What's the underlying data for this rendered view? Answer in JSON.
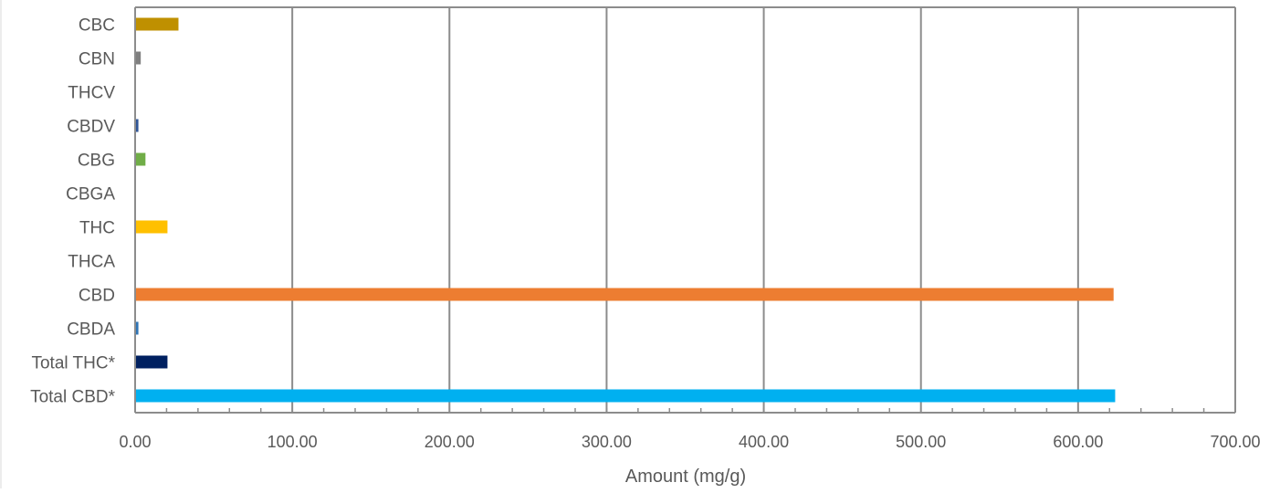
{
  "chart_data": {
    "type": "bar",
    "orientation": "horizontal",
    "categories": [
      "CBC",
      "CBN",
      "THCV",
      "CBDV",
      "CBG",
      "CBGA",
      "THC",
      "THCA",
      "CBD",
      "CBDA",
      "Total THC*",
      "Total CBD*"
    ],
    "values": [
      27,
      3,
      0,
      1.5,
      6,
      0,
      20,
      0,
      622,
      1.5,
      20,
      623
    ],
    "colors": [
      "#BF9000",
      "#7F7F7F",
      "#A5A5A5",
      "#2F5597",
      "#70AD47",
      "#A9D18E",
      "#FFC000",
      "#ED7D31",
      "#ED7D31",
      "#2E75B6",
      "#002060",
      "#00B0F0"
    ],
    "title": "",
    "xlabel": "Amount (mg/g)",
    "ylabel": "",
    "xlim": [
      0,
      700
    ],
    "x_ticks": [
      "0.00",
      "100.00",
      "200.00",
      "300.00",
      "400.00",
      "500.00",
      "600.00",
      "700.00"
    ],
    "grid": "vertical",
    "legend": "none"
  }
}
